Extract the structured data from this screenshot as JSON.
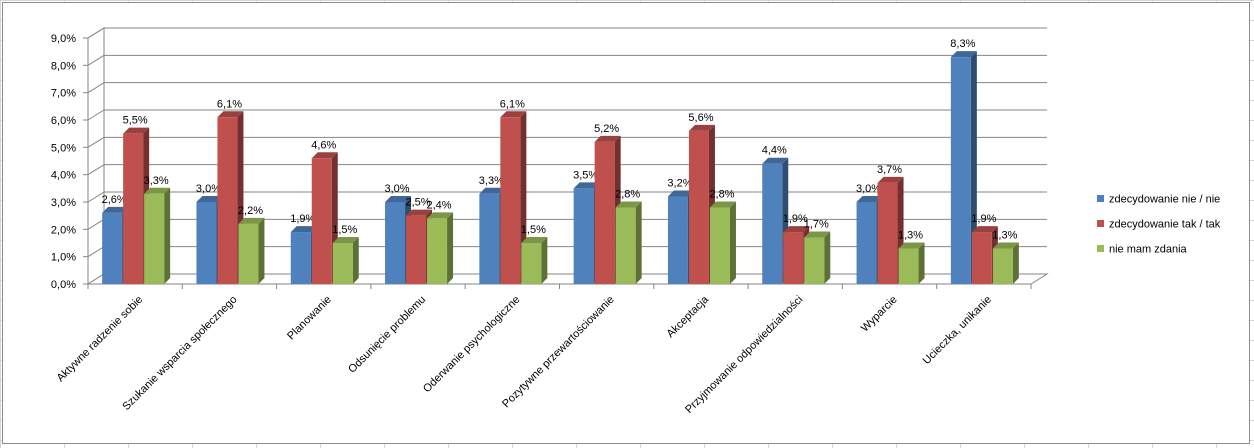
{
  "chart_data": {
    "type": "bar",
    "variant": "3d-clustered-column",
    "title": "",
    "xlabel": "",
    "ylabel": "",
    "ylim": [
      0,
      9
    ],
    "ytick_step": 1,
    "ytick_labels": [
      "0,0%",
      "1,0%",
      "2,0%",
      "3,0%",
      "4,0%",
      "5,0%",
      "6,0%",
      "7,0%",
      "8,0%",
      "9,0%"
    ],
    "grid": true,
    "legend_position": "right",
    "categories": [
      "Aktywne radzenie sobie",
      "Szukanie wsparcia społecznego",
      "Planowanie",
      "Odsunięcie problemu",
      "Oderwanie psychologiczne",
      "Pozytywne przewartościowanie",
      "Akceptacja",
      "Przyjmowanie odpowiedzialności",
      "Wyparcie",
      "Ucieczka, unikanie"
    ],
    "series": [
      {
        "name": "zdecydowanie nie / nie",
        "color": "#4f81bd",
        "values": [
          2.6,
          3.0,
          1.9,
          3.0,
          3.3,
          3.5,
          3.2,
          4.4,
          3.0,
          8.3
        ],
        "labels": [
          "2,6%",
          "3,0%",
          "1,9%",
          "3,0%",
          "3,3%",
          "3,5%",
          "3,2%",
          "4,4%",
          "3,0%",
          "8,3%"
        ]
      },
      {
        "name": "zdecydowanie tak / tak",
        "color": "#c0504d",
        "values": [
          5.5,
          6.1,
          4.6,
          2.5,
          6.1,
          5.2,
          5.6,
          1.9,
          3.7,
          1.9
        ],
        "labels": [
          "5,5%",
          "6,1%",
          "4,6%",
          "2,5%",
          "6,1%",
          "5,2%",
          "5,6%",
          "1,9%",
          "3,7%",
          "1,9%"
        ]
      },
      {
        "name": "nie mam zdania",
        "color": "#9bbb59",
        "values": [
          3.3,
          2.2,
          1.5,
          2.4,
          1.5,
          2.8,
          2.8,
          1.7,
          1.3,
          1.3
        ],
        "labels": [
          "3,3%",
          "2,2%",
          "1,5%",
          "2,4%",
          "1,5%",
          "2,8%",
          "2,8%",
          "1,7%",
          "1,3%",
          "1,3%"
        ]
      }
    ]
  }
}
